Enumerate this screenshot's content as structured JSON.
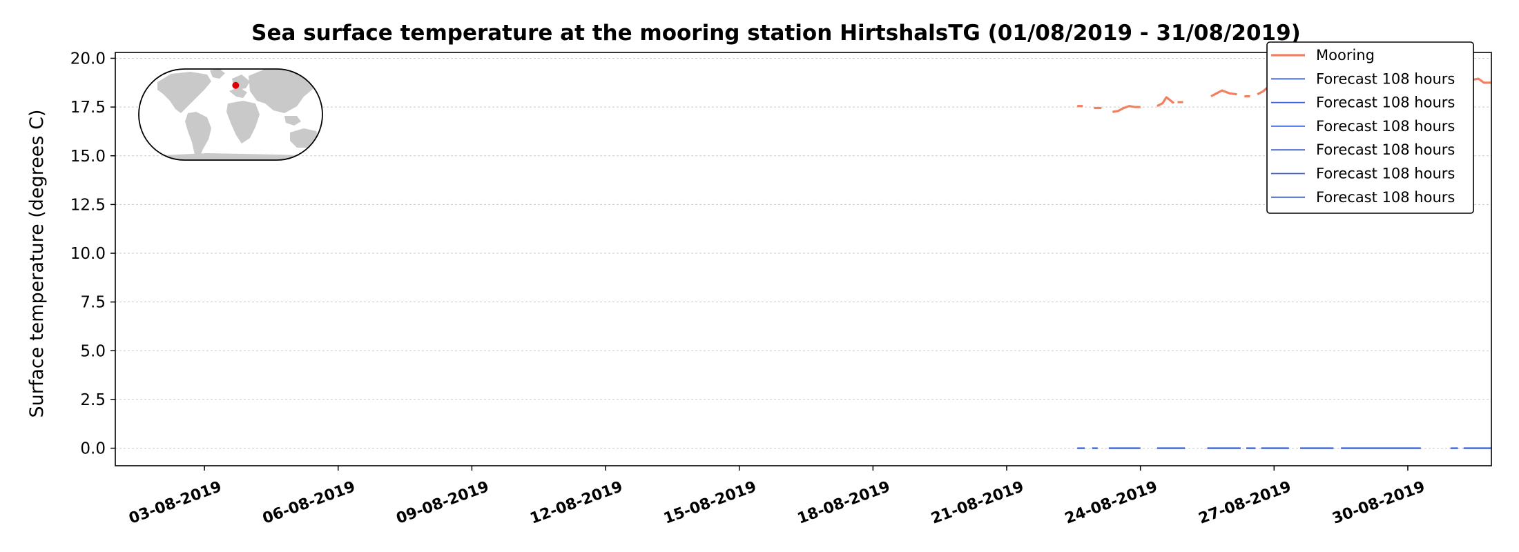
{
  "chart_data": {
    "type": "line",
    "title": "Sea surface temperature at the mooring station HirtshalsTG (01/08/2019 - 31/08/2019)",
    "xlabel": "",
    "ylabel": "Surface temperature (degrees C)",
    "xlim": [
      "2019-08-01T00:00",
      "2019-08-31T21:00"
    ],
    "ylim": [
      -0.9,
      20.3
    ],
    "yticks": [
      0.0,
      2.5,
      5.0,
      7.5,
      10.0,
      12.5,
      15.0,
      17.5,
      20.0
    ],
    "ytick_labels": [
      "0.0",
      "2.5",
      "5.0",
      "7.5",
      "10.0",
      "12.5",
      "15.0",
      "17.5",
      "20.0"
    ],
    "xticks": [
      "2019-08-03",
      "2019-08-06",
      "2019-08-09",
      "2019-08-12",
      "2019-08-15",
      "2019-08-18",
      "2019-08-21",
      "2019-08-24",
      "2019-08-27",
      "2019-08-30"
    ],
    "xtick_labels": [
      "03-08-2019",
      "06-08-2019",
      "09-08-2019",
      "12-08-2019",
      "15-08-2019",
      "18-08-2019",
      "21-08-2019",
      "24-08-2019",
      "27-08-2019",
      "30-08-2019"
    ],
    "grid": "horizontal",
    "legend_position": "top-right",
    "series": [
      {
        "name": "Mooring",
        "color": "#f08060",
        "segments": [
          [
            [
              "2019-08-22T14:00",
              17.55
            ],
            [
              "2019-08-22T17:00",
              17.55
            ]
          ],
          [
            [
              "2019-08-22T23:00",
              17.45
            ],
            [
              "2019-08-23T03:00",
              17.45
            ]
          ],
          [
            [
              "2019-08-23T09:00",
              17.25
            ],
            [
              "2019-08-23T12:00",
              17.3
            ],
            [
              "2019-08-23T15:00",
              17.45
            ],
            [
              "2019-08-23T18:00",
              17.55
            ],
            [
              "2019-08-23T21:00",
              17.5
            ],
            [
              "2019-08-24T00:00",
              17.5
            ]
          ],
          [
            [
              "2019-08-24T09:00",
              17.55
            ],
            [
              "2019-08-24T12:00",
              17.7
            ],
            [
              "2019-08-24T14:00",
              18.0
            ],
            [
              "2019-08-24T16:00",
              17.85
            ],
            [
              "2019-08-24T18:00",
              17.7
            ]
          ],
          [
            [
              "2019-08-24T20:00",
              17.75
            ],
            [
              "2019-08-24T23:00",
              17.75
            ]
          ],
          [
            [
              "2019-08-25T14:00",
              18.05
            ],
            [
              "2019-08-25T17:00",
              18.2
            ],
            [
              "2019-08-25T20:00",
              18.35
            ],
            [
              "2019-08-26T00:00",
              18.2
            ],
            [
              "2019-08-26T04:00",
              18.15
            ]
          ],
          [
            [
              "2019-08-26T08:00",
              18.05
            ],
            [
              "2019-08-26T11:00",
              18.05
            ]
          ],
          [
            [
              "2019-08-26T15:00",
              18.15
            ],
            [
              "2019-08-26T18:00",
              18.3
            ],
            [
              "2019-08-26T21:00",
              18.55
            ],
            [
              "2019-08-27T00:00",
              18.4
            ],
            [
              "2019-08-27T03:00",
              18.3
            ]
          ],
          [
            [
              "2019-08-27T09:00",
              18.25
            ],
            [
              "2019-08-27T12:00",
              18.45
            ],
            [
              "2019-08-27T15:00",
              18.6
            ]
          ],
          [
            [
              "2019-08-27T20:00",
              18.3
            ],
            [
              "2019-08-28T00:00",
              18.25
            ]
          ],
          [
            [
              "2019-08-28T05:00",
              18.2
            ],
            [
              "2019-08-28T08:00",
              18.35
            ],
            [
              "2019-08-28T12:00",
              18.6
            ],
            [
              "2019-08-28T16:00",
              18.5
            ]
          ],
          [
            [
              "2019-08-29T02:00",
              18.5
            ],
            [
              "2019-08-29T06:00",
              18.7
            ],
            [
              "2019-08-29T10:00",
              18.8
            ]
          ],
          [
            [
              "2019-08-29T16:00",
              18.75
            ],
            [
              "2019-08-29T20:00",
              18.9
            ]
          ],
          [
            [
              "2019-08-30T06:00",
              18.9
            ],
            [
              "2019-08-30T10:00",
              19.05
            ]
          ],
          [
            [
              "2019-08-30T16:00",
              18.8
            ],
            [
              "2019-08-30T20:00",
              18.8
            ]
          ],
          [
            [
              "2019-08-31T04:00",
              18.8
            ],
            [
              "2019-08-31T07:00",
              18.8
            ]
          ],
          [
            [
              "2019-08-31T11:00",
              18.9
            ],
            [
              "2019-08-31T14:00",
              18.95
            ],
            [
              "2019-08-31T17:00",
              18.75
            ],
            [
              "2019-08-31T21:00",
              18.75
            ]
          ]
        ]
      },
      {
        "name": "Forecast 108 hours",
        "color": "#3f63d6",
        "segments": [
          [
            [
              "2019-08-22T14:00",
              0.0
            ],
            [
              "2019-08-22T18:00",
              0.0
            ]
          ],
          [
            [
              "2019-08-22T22:00",
              0.0
            ],
            [
              "2019-08-23T01:00",
              0.0
            ]
          ],
          [
            [
              "2019-08-23T07:00",
              0.0
            ],
            [
              "2019-08-24T00:00",
              0.0
            ]
          ],
          [
            [
              "2019-08-24T09:00",
              0.0
            ],
            [
              "2019-08-25T00:00",
              0.0
            ]
          ],
          [
            [
              "2019-08-25T12:00",
              0.0
            ],
            [
              "2019-08-26T06:00",
              0.0
            ]
          ],
          [
            [
              "2019-08-26T09:00",
              0.0
            ],
            [
              "2019-08-26T14:00",
              0.0
            ]
          ],
          [
            [
              "2019-08-26T17:00",
              0.0
            ],
            [
              "2019-08-27T08:00",
              0.0
            ]
          ],
          [
            [
              "2019-08-27T14:00",
              0.0
            ],
            [
              "2019-08-28T08:00",
              0.0
            ]
          ],
          [
            [
              "2019-08-28T12:00",
              0.0
            ],
            [
              "2019-08-30T07:00",
              0.0
            ]
          ],
          [
            [
              "2019-08-30T23:00",
              0.0
            ],
            [
              "2019-08-31T03:00",
              0.0
            ]
          ],
          [
            [
              "2019-08-31T06:00",
              0.0
            ],
            [
              "2019-08-31T21:00",
              0.0
            ]
          ]
        ]
      }
    ],
    "legend": [
      {
        "label": "Mooring",
        "color": "#f08060"
      },
      {
        "label": "Forecast 108 hours",
        "color": "#3f63d6"
      },
      {
        "label": "Forecast 108 hours",
        "color": "#3f63d6"
      },
      {
        "label": "Forecast 108 hours",
        "color": "#3f63d6"
      },
      {
        "label": "Forecast 108 hours",
        "color": "#3f63d6"
      },
      {
        "label": "Forecast 108 hours",
        "color": "#3f63d6"
      },
      {
        "label": "Forecast 108 hours",
        "color": "#3f63d6"
      }
    ],
    "inset_map": {
      "icon": "world-map-icon",
      "marker_color": "#e00000",
      "marker_lat": 57.6,
      "marker_lon": 9.96
    }
  }
}
